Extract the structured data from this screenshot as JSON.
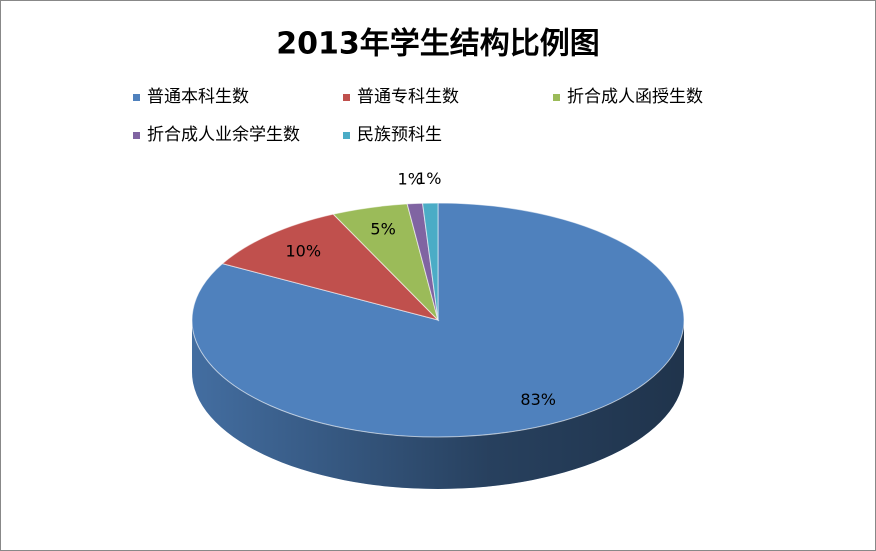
{
  "chart_data": {
    "type": "pie",
    "title": "2013年学生结构比例图",
    "categories": [
      "普通本科生数",
      "普通专科生数",
      "折合成人函授生数",
      "折合成人业余学生数",
      "民族预科生"
    ],
    "values": [
      83,
      10,
      5,
      1,
      1
    ],
    "value_labels": [
      "83%",
      "10%",
      "5%",
      "1%",
      "1%"
    ],
    "colors": [
      "#4f81bd",
      "#c0504d",
      "#9bbb59",
      "#8064a2",
      "#4bacc6"
    ],
    "legend": "top"
  }
}
